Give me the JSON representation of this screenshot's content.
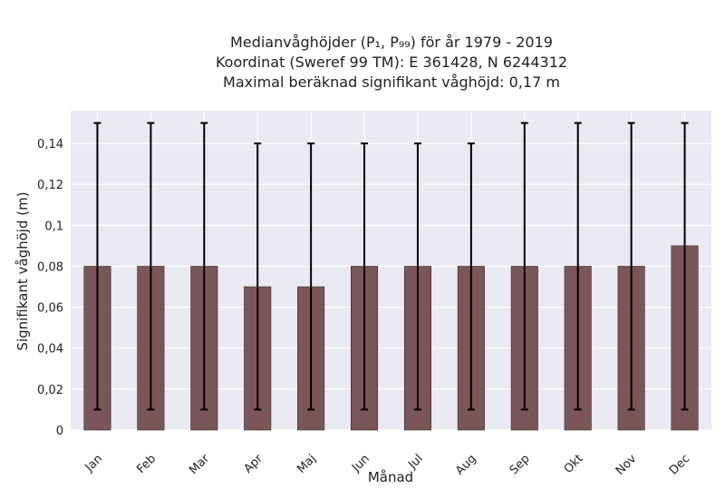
{
  "chart_data": {
    "type": "bar",
    "title_lines": [
      "Medianvåghöjder (P₁, P₉₉) för år 1979 - 2019",
      "Koordinat (Sweref 99 TM): E 361428, N 6244312",
      "Maximal beräknad signifikant våghöjd: 0,17 m"
    ],
    "xlabel": "Månad",
    "ylabel": "Signifikant våghöjd (m)",
    "categories": [
      "Jan",
      "Feb",
      "Mar",
      "Apr",
      "Maj",
      "Jun",
      "Jul",
      "Aug",
      "Sep",
      "Okt",
      "Nov",
      "Dec"
    ],
    "values": [
      0.08,
      0.08,
      0.08,
      0.07,
      0.07,
      0.08,
      0.08,
      0.08,
      0.08,
      0.08,
      0.08,
      0.09
    ],
    "error_low": [
      0.01,
      0.01,
      0.01,
      0.01,
      0.01,
      0.01,
      0.01,
      0.01,
      0.01,
      0.01,
      0.01,
      0.01
    ],
    "error_high": [
      0.15,
      0.15,
      0.15,
      0.14,
      0.14,
      0.14,
      0.14,
      0.14,
      0.15,
      0.15,
      0.15,
      0.15
    ],
    "yticks": [
      0,
      0.02,
      0.04,
      0.06,
      0.08,
      0.1,
      0.12,
      0.14
    ],
    "ytick_labels": [
      "0",
      "0,02",
      "0,04",
      "0,06",
      "0,08",
      "0,1",
      "0,12",
      "0,14"
    ],
    "ylim": [
      0,
      0.156
    ],
    "grid": true,
    "colors": {
      "bar": "#7a5658",
      "bar_edge": "#3a2a2a",
      "error": "#000000",
      "background": "#eaeaf2",
      "grid": "#ffffff"
    }
  }
}
